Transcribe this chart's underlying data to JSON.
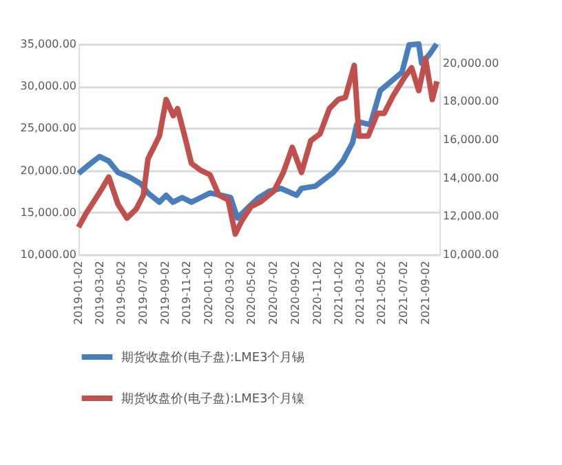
{
  "chart_data": {
    "type": "line",
    "xlim": [
      "2019-01-02",
      "2021-10-11"
    ],
    "xticks": [
      "2019-01-02",
      "2019-03-02",
      "2019-05-02",
      "2019-07-02",
      "2019-09-02",
      "2019-11-02",
      "2020-01-02",
      "2020-03-02",
      "2020-05-02",
      "2020-07-02",
      "2020-09-02",
      "2020-11-02",
      "2021-01-02",
      "2021-03-02",
      "2021-05-02",
      "2021-07-02",
      "2021-09-02"
    ],
    "ylim": [
      10000,
      35000
    ],
    "yticks": [
      {
        "value": 10000,
        "label": "10,000.00"
      },
      {
        "value": 15000,
        "label": "15,000.00"
      },
      {
        "value": 20000,
        "label": "20,000.00"
      },
      {
        "value": 25000,
        "label": "25,000.00"
      },
      {
        "value": 30000,
        "label": "30,000.00"
      },
      {
        "value": 35000,
        "label": "35,000.00"
      }
    ],
    "y2lim": [
      10000,
      21000
    ],
    "y2ticks": [
      {
        "value": 10000,
        "label": "10,000.00"
      },
      {
        "value": 12000,
        "label": "12,000.00"
      },
      {
        "value": 14000,
        "label": "14,000.00"
      },
      {
        "value": 16000,
        "label": "16,000.00"
      },
      {
        "value": 18000,
        "label": "18,000.00"
      },
      {
        "value": 20000,
        "label": "20,000.00"
      }
    ],
    "grid": "y",
    "legend": "bottom",
    "marker": "none",
    "line_style": "solid",
    "series": [
      {
        "name": "期货收盘价(电子盘):LME3个月锡",
        "color": "#4a7ebb",
        "axis": "y",
        "x": [
          "2019-01-02",
          "2019-02-05",
          "2019-03-02",
          "2019-03-28",
          "2019-04-23",
          "2019-05-25",
          "2019-06-26",
          "2019-07-16",
          "2019-08-17",
          "2019-09-05",
          "2019-09-24",
          "2019-10-20",
          "2019-11-15",
          "2019-12-11",
          "2020-01-06",
          "2020-02-07",
          "2020-03-04",
          "2020-03-23",
          "2020-04-18",
          "2020-05-20",
          "2020-06-20",
          "2020-07-23",
          "2020-09-05",
          "2020-09-19",
          "2020-10-28",
          "2020-12-17",
          "2021-01-13",
          "2021-02-09",
          "2021-02-21",
          "2021-03-04",
          "2021-03-31",
          "2021-04-28",
          "2021-06-05",
          "2021-06-28",
          "2021-07-18",
          "2021-08-14",
          "2021-08-22",
          "2021-09-14",
          "2021-10-03"
        ],
        "values": [
          19630,
          20820,
          21630,
          21100,
          19740,
          19200,
          18390,
          17300,
          16220,
          17030,
          16220,
          16760,
          16220,
          16760,
          17300,
          17030,
          16760,
          14330,
          15410,
          16680,
          17500,
          17850,
          17030,
          17850,
          18120,
          19740,
          21100,
          23260,
          25420,
          25700,
          25420,
          29480,
          30830,
          31650,
          34900,
          35000,
          32730,
          33810,
          35000
        ]
      },
      {
        "name": "期货收盘价(电子盘):LME3个月镍",
        "color": "#c0504d",
        "axis": "y2",
        "x": [
          "2019-01-02",
          "2019-01-23",
          "2019-02-17",
          "2019-03-09",
          "2019-03-28",
          "2019-04-23",
          "2019-05-18",
          "2019-06-13",
          "2019-07-03",
          "2019-07-16",
          "2019-08-04",
          "2019-08-17",
          "2019-09-05",
          "2019-09-25",
          "2019-10-07",
          "2019-10-27",
          "2019-11-15",
          "2019-12-11",
          "2020-01-06",
          "2020-01-31",
          "2020-02-26",
          "2020-03-17",
          "2020-04-05",
          "2020-04-30",
          "2020-05-26",
          "2020-07-04",
          "2020-07-30",
          "2020-08-24",
          "2020-09-19",
          "2020-10-15",
          "2020-11-10",
          "2020-12-06",
          "2020-12-31",
          "2021-01-20",
          "2021-02-14",
          "2021-02-27",
          "2021-03-25",
          "2021-04-20",
          "2021-05-09",
          "2021-06-04",
          "2021-07-06",
          "2021-07-25",
          "2021-08-14",
          "2021-09-02",
          "2021-09-21",
          "2021-10-04"
        ],
        "values": [
          11430,
          12140,
          12860,
          13450,
          14050,
          12620,
          11900,
          12380,
          13100,
          15000,
          15710,
          16190,
          18100,
          17260,
          17620,
          16190,
          14760,
          14400,
          14170,
          13100,
          12860,
          11070,
          11790,
          12500,
          12740,
          13330,
          14290,
          15600,
          14290,
          15950,
          16310,
          17620,
          18100,
          18210,
          19880,
          16190,
          16190,
          17380,
          17380,
          18330,
          19290,
          19760,
          18570,
          20240,
          18100,
          19050
        ]
      }
    ]
  }
}
